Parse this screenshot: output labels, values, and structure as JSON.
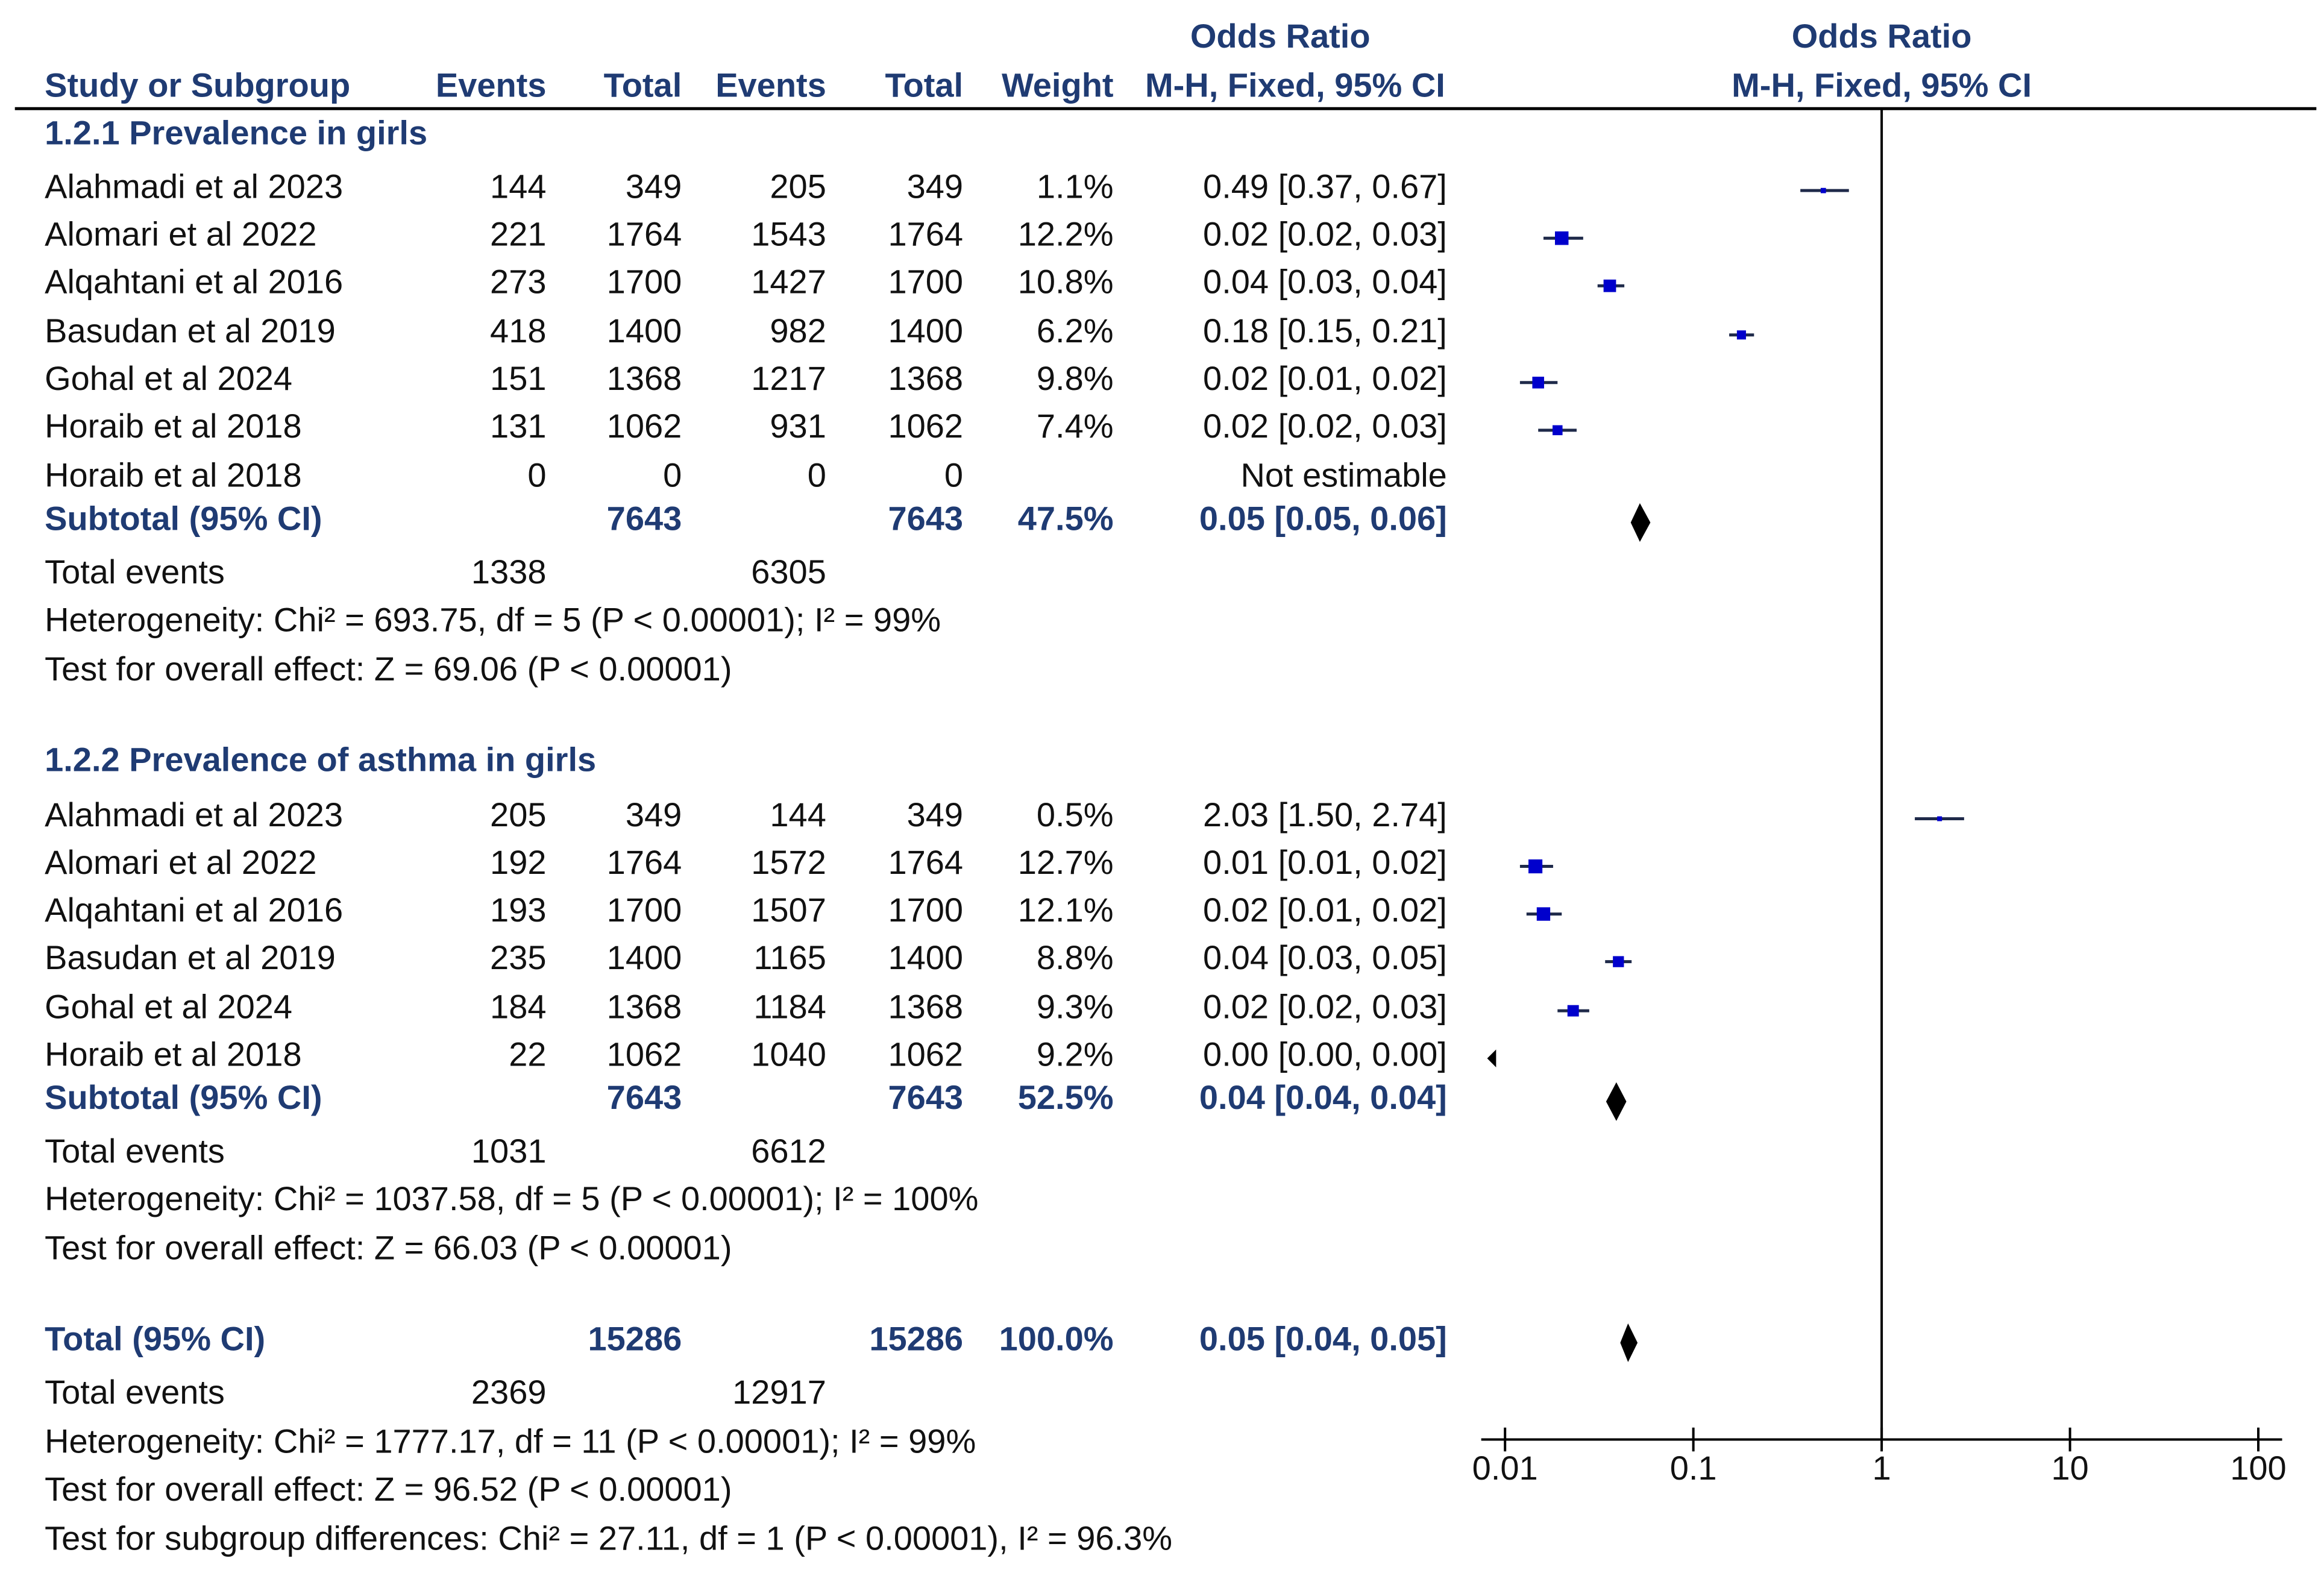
{
  "chart_data": {
    "type": "forest",
    "header": {
      "or_title": "Odds Ratio",
      "or_method": "M-H, Fixed, 95% CI",
      "plot_title": "Odds Ratio",
      "plot_method": "M-H, Fixed, 95% CI",
      "columns": [
        "Study or Subgroup",
        "Events",
        "Total",
        "Events",
        "Total",
        "Weight"
      ]
    },
    "subgroups": [
      {
        "title": "1.2.1 Prevalence in girls",
        "studies": [
          {
            "name": "Alahmadi et al 2023",
            "e1": "144",
            "t1": "349",
            "e2": "205",
            "t2": "349",
            "weight": "1.1%",
            "ci_text": "0.49 [0.37, 0.67]",
            "or": 0.49,
            "lo": 0.37,
            "hi": 0.67,
            "w": 1.1
          },
          {
            "name": "Alomari et al 2022",
            "e1": "221",
            "t1": "1764",
            "e2": "1543",
            "t2": "1764",
            "weight": "12.2%",
            "ci_text": "0.02 [0.02, 0.03]",
            "or": 0.02,
            "lo": 0.016,
            "hi": 0.026,
            "w": 12.2
          },
          {
            "name": "Alqahtani et al 2016",
            "e1": "273",
            "t1": "1700",
            "e2": "1427",
            "t2": "1700",
            "weight": "10.8%",
            "ci_text": "0.04 [0.03, 0.04]",
            "or": 0.036,
            "lo": 0.031,
            "hi": 0.043,
            "w": 10.8
          },
          {
            "name": "Basudan et al 2019",
            "e1": "418",
            "t1": "1400",
            "e2": "982",
            "t2": "1400",
            "weight": "6.2%",
            "ci_text": "0.18 [0.15, 0.21]",
            "or": 0.18,
            "lo": 0.155,
            "hi": 0.21,
            "w": 6.2
          },
          {
            "name": "Gohal et al 2024",
            "e1": "151",
            "t1": "1368",
            "e2": "1217",
            "t2": "1368",
            "weight": "9.8%",
            "ci_text": "0.02 [0.01, 0.02]",
            "or": 0.015,
            "lo": 0.012,
            "hi": 0.019,
            "w": 9.8
          },
          {
            "name": "Horaib et al 2018",
            "e1": "131",
            "t1": "1062",
            "e2": "931",
            "t2": "1062",
            "weight": "7.4%",
            "ci_text": "0.02 [0.02, 0.03]",
            "or": 0.019,
            "lo": 0.015,
            "hi": 0.024,
            "w": 7.4
          },
          {
            "name": "Horaib et al 2018",
            "e1": "0",
            "t1": "0",
            "e2": "0",
            "t2": "0",
            "weight": "",
            "ci_text": "Not estimable",
            "or": null,
            "lo": null,
            "hi": null,
            "w": 0
          }
        ],
        "subtotal": {
          "label": "Subtotal (95% CI)",
          "t1": "7643",
          "t2": "7643",
          "weight": "47.5%",
          "ci_text": "0.05 [0.05, 0.06]",
          "or": 0.052,
          "lo": 0.05,
          "hi": 0.055
        },
        "events": {
          "label": "Total events",
          "e1": "1338",
          "e2": "6305"
        },
        "heterogeneity": "Heterogeneity: Chi² = 693.75, df = 5 (P < 0.00001); I² = 99%",
        "overall": "Test for overall effect: Z = 69.06 (P < 0.00001)"
      },
      {
        "title": "1.2.2 Prevalence of asthma in girls",
        "studies": [
          {
            "name": "Alahmadi et al 2023",
            "e1": "205",
            "t1": "349",
            "e2": "144",
            "t2": "349",
            "weight": "0.5%",
            "ci_text": "2.03 [1.50, 2.74]",
            "or": 2.03,
            "lo": 1.5,
            "hi": 2.74,
            "w": 0.5
          },
          {
            "name": "Alomari et al 2022",
            "e1": "192",
            "t1": "1764",
            "e2": "1572",
            "t2": "1764",
            "weight": "12.7%",
            "ci_text": "0.01 [0.01, 0.02]",
            "or": 0.0145,
            "lo": 0.012,
            "hi": 0.018,
            "w": 12.7
          },
          {
            "name": "Alqahtani et al 2016",
            "e1": "193",
            "t1": "1700",
            "e2": "1507",
            "t2": "1700",
            "weight": "12.1%",
            "ci_text": "0.02 [0.01, 0.02]",
            "or": 0.016,
            "lo": 0.013,
            "hi": 0.02,
            "w": 12.1
          },
          {
            "name": "Basudan et al 2019",
            "e1": "235",
            "t1": "1400",
            "e2": "1165",
            "t2": "1400",
            "weight": "8.8%",
            "ci_text": "0.04 [0.03, 0.05]",
            "or": 0.04,
            "lo": 0.034,
            "hi": 0.047,
            "w": 8.8
          },
          {
            "name": "Gohal et al 2024",
            "e1": "184",
            "t1": "1368",
            "e2": "1184",
            "t2": "1368",
            "weight": "9.3%",
            "ci_text": "0.02 [0.02, 0.03]",
            "or": 0.023,
            "lo": 0.019,
            "hi": 0.028,
            "w": 9.3
          },
          {
            "name": "Horaib et al 2018",
            "e1": "22",
            "t1": "1062",
            "e2": "1040",
            "t2": "1062",
            "weight": "9.2%",
            "ci_text": "0.00 [0.00, 0.00]",
            "or": 0.0015,
            "lo": 0.001,
            "hi": 0.002,
            "w": 9.2
          }
        ],
        "subtotal": {
          "label": "Subtotal (95% CI)",
          "t1": "7643",
          "t2": "7643",
          "weight": "52.5%",
          "ci_text": "0.04 [0.04, 0.04]",
          "or": 0.039,
          "lo": 0.037,
          "hi": 0.041
        },
        "events": {
          "label": "Total events",
          "e1": "1031",
          "e2": "6612"
        },
        "heterogeneity": "Heterogeneity: Chi² = 1037.58, df = 5 (P < 0.00001); I² = 100%",
        "overall": "Test for overall effect: Z = 66.03 (P < 0.00001)"
      }
    ],
    "total": {
      "label": "Total (95% CI)",
      "t1": "15286",
      "t2": "15286",
      "weight": "100.0%",
      "ci_text": "0.05 [0.04, 0.05]",
      "or": 0.045,
      "lo": 0.044,
      "hi": 0.047,
      "events": {
        "label": "Total events",
        "e1": "2369",
        "e2": "12917"
      },
      "heterogeneity": "Heterogeneity: Chi² = 1777.17, df = 11 (P < 0.00001); I² = 99%",
      "overall": "Test for overall effect: Z = 96.52 (P < 0.00001)",
      "subgroup_diff": "Test for subgroup differences: Chi² = 27.11, df = 1 (P < 0.00001), I² = 96.3%"
    },
    "axis": {
      "scale": "log",
      "min": 0.01,
      "max": 100,
      "null_line": 1,
      "ticks": [
        0.01,
        0.1,
        1,
        10,
        100
      ],
      "tick_labels": [
        "0.01",
        "0.1",
        "1",
        "10",
        "100"
      ]
    },
    "colors": {
      "text": "#111111",
      "subgroup_title": "#1f3b73",
      "summary_text": "#1f3b73",
      "marker": "#0000cc",
      "ci_line": "#1f2a4a",
      "diamond": "#000000",
      "rule": "#000000"
    }
  }
}
